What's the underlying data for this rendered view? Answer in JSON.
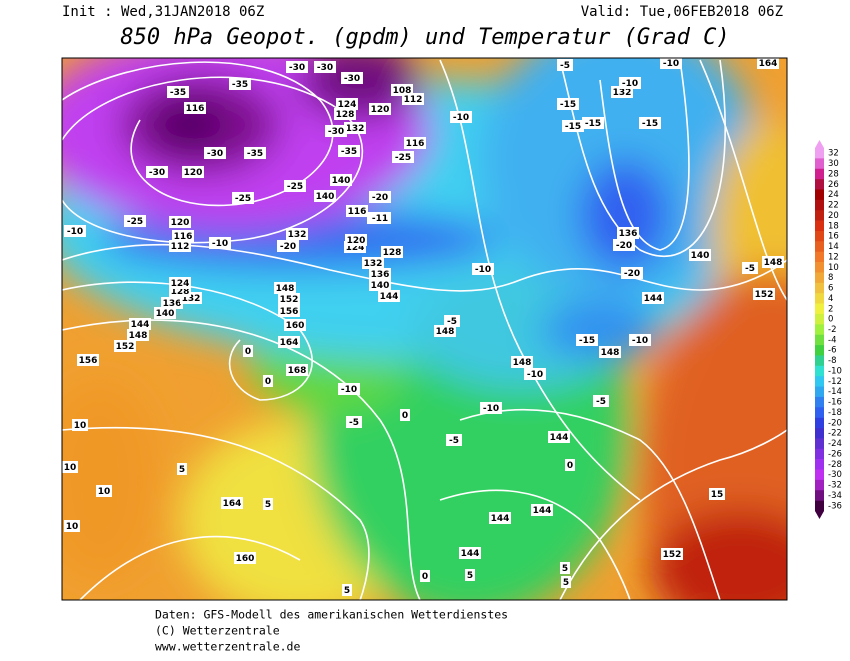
{
  "header": {
    "init": "Init : Wed,31JAN2018 06Z",
    "valid": "Valid: Tue,06FEB2018 06Z",
    "title": "850 hPa Geopot. (gpdm) und Temperatur (Grad C)"
  },
  "colorbar": {
    "values": [
      32,
      30,
      28,
      26,
      24,
      22,
      20,
      18,
      16,
      14,
      12,
      10,
      8,
      6,
      4,
      2,
      0,
      -2,
      -4,
      -6,
      -8,
      -10,
      -12,
      -14,
      -16,
      -18,
      -20,
      -22,
      -24,
      -26,
      -28,
      -30,
      -32,
      -34,
      -36
    ],
    "colors": [
      "#f0a0f0",
      "#e060d0",
      "#d02090",
      "#b01040",
      "#a00000",
      "#b01010",
      "#c02010",
      "#d83010",
      "#e04818",
      "#e86020",
      "#f07828",
      "#f09030",
      "#f0a838",
      "#f0c040",
      "#f0d840",
      "#f0f040",
      "#d0f040",
      "#a0f040",
      "#70e040",
      "#40d040",
      "#30d090",
      "#30e0d0",
      "#30c8f0",
      "#30a8f0",
      "#3080f0",
      "#3060f0",
      "#3040e0",
      "#4030d0",
      "#6030d0",
      "#8030e0",
      "#a030f0",
      "#c030f0",
      "#a020c0",
      "#701080",
      "#400040"
    ]
  },
  "map": {
    "contour_labels": [
      "-35",
      "-35",
      "116",
      "-30",
      "-35",
      "120",
      "-30",
      "-25",
      "-25",
      "120",
      "116",
      "112",
      "-10",
      "-10",
      "-25",
      "140",
      "132",
      "-20",
      "124",
      "128",
      "132",
      "136",
      "140",
      "144",
      "148",
      "152",
      "156",
      "160",
      "164",
      "168",
      "0",
      "0",
      "-10",
      "-5",
      "0",
      "-5",
      "148",
      "-10",
      "-10",
      "116",
      "-25",
      "-15",
      "-15",
      "-15",
      "-15",
      "-15",
      "132",
      "-10",
      "-5",
      "-10",
      "164",
      "136",
      "-20",
      "-20",
      "140",
      "144",
      "-5",
      "148",
      "152",
      "-15",
      "148",
      "-10",
      "148",
      "-10",
      "-10",
      "-5",
      "-5",
      "144",
      "0",
      "144",
      "144",
      "144",
      "5",
      "5",
      "5",
      "0",
      "5",
      "15",
      "152",
      "164",
      "5",
      "5",
      "160",
      "10",
      "10",
      "10",
      "10",
      "156",
      "152",
      "148",
      "144",
      "140",
      "136",
      "132",
      "128",
      "124",
      "-30",
      "-30",
      "-30",
      "108",
      "112",
      "120",
      "124",
      "128",
      "132",
      "-30",
      "-35",
      "140",
      "116",
      "-11",
      "-20",
      "120"
    ]
  },
  "footer": {
    "line1": "Daten: GFS-Modell des amerikanischen Wetterdienstes",
    "line2": "(C) Wetterzentrale",
    "line3": "www.wetterzentrale.de"
  }
}
